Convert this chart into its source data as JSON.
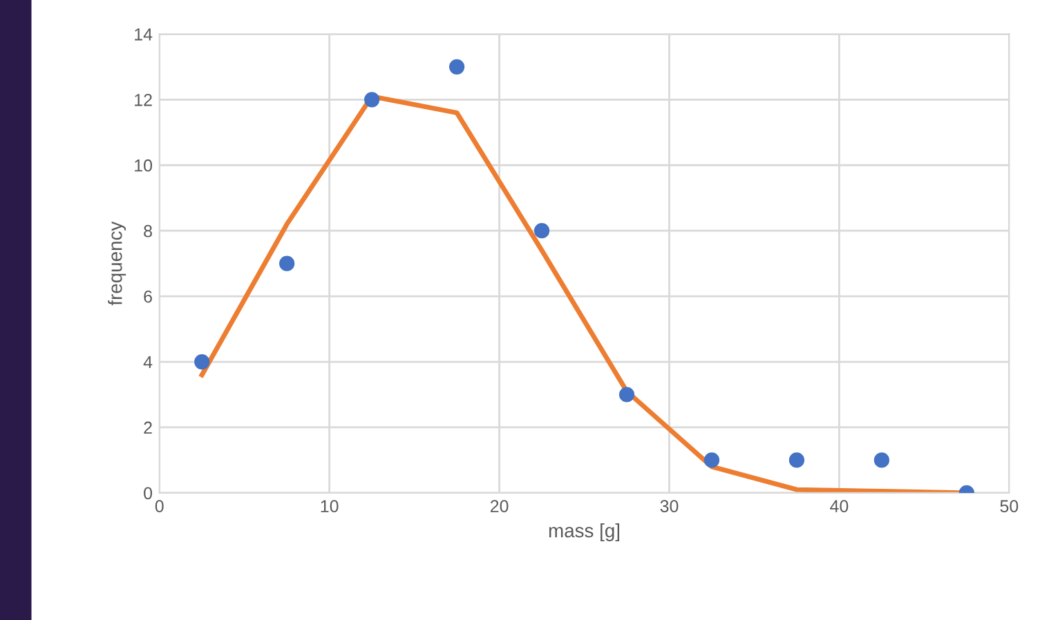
{
  "chart_data": {
    "type": "scatter",
    "xlabel": "mass [g]",
    "ylabel": "frequency",
    "xlim": [
      0,
      50
    ],
    "ylim": [
      0,
      14
    ],
    "xticks": [
      0,
      10,
      20,
      30,
      40,
      50
    ],
    "yticks": [
      0,
      2,
      4,
      6,
      8,
      10,
      12,
      14
    ],
    "grid": true,
    "legend": false,
    "marker": "circle",
    "x": [
      2.5,
      7.5,
      12.5,
      17.5,
      22.5,
      27.5,
      32.5,
      37.5,
      42.5,
      47.5
    ],
    "series": [
      {
        "color": "#4472c4",
        "values": [
          4,
          7,
          12,
          13,
          8,
          3,
          1,
          1,
          1,
          0
        ]
      },
      {
        "type": "line",
        "color": "#ed7d31",
        "marker": "none",
        "line_style": "solid",
        "values": [
          3.6,
          8.2,
          12.1,
          11.6,
          7.4,
          3.1,
          0.8,
          0.1,
          0.05,
          0
        ]
      }
    ]
  }
}
